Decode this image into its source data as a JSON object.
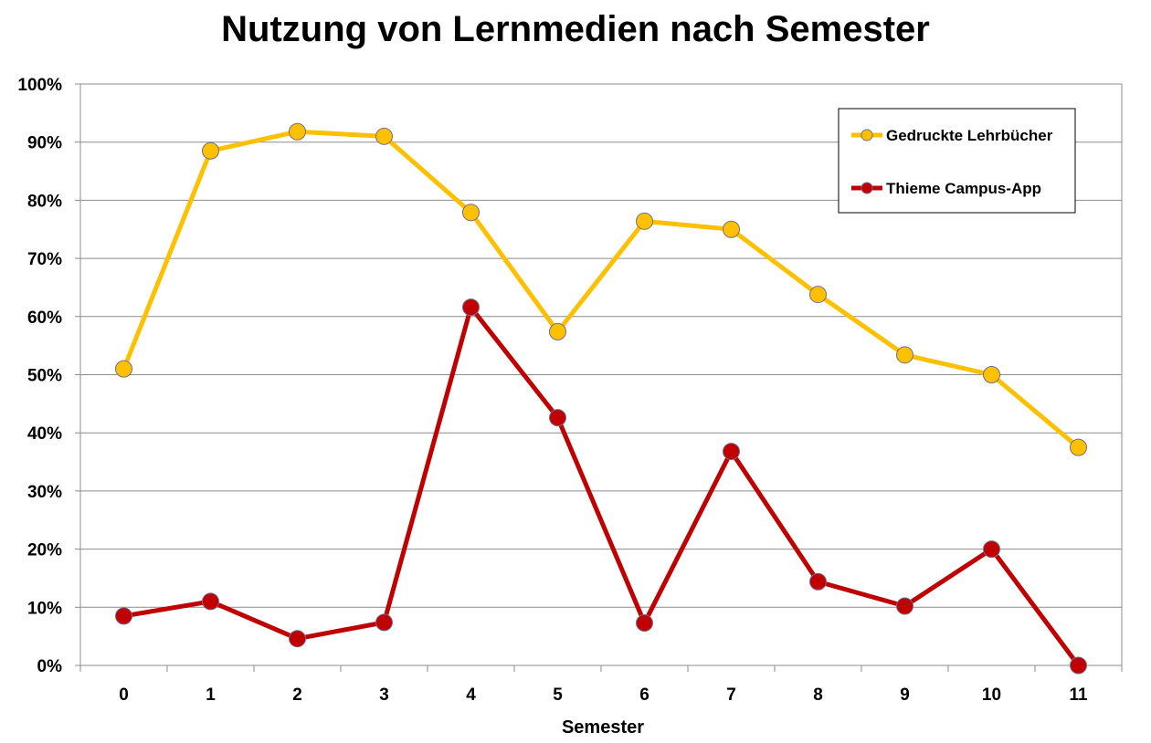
{
  "chart_data": {
    "type": "line",
    "title": "Nutzung von Lernmedien nach Semester",
    "xlabel": "Semester",
    "ylabel": "",
    "categories": [
      "0",
      "1",
      "2",
      "3",
      "4",
      "5",
      "6",
      "7",
      "8",
      "9",
      "10",
      "11"
    ],
    "y_ticks": [
      "0%",
      "10%",
      "20%",
      "30%",
      "40%",
      "50%",
      "60%",
      "70%",
      "80%",
      "90%",
      "100%"
    ],
    "ylim": [
      0,
      100
    ],
    "grid": true,
    "legend_position": "top-right",
    "series": [
      {
        "name": "Gedruckte Lehrbücher",
        "color": "#ffc000",
        "values": [
          51.0,
          88.5,
          91.8,
          91.0,
          77.9,
          57.4,
          76.4,
          75.0,
          63.8,
          53.4,
          50.0,
          37.5
        ]
      },
      {
        "name": "Thieme Campus-App",
        "color": "#c00000",
        "values": [
          8.5,
          11.0,
          4.6,
          7.4,
          61.6,
          42.6,
          7.3,
          36.8,
          14.4,
          10.2,
          20.0,
          0.0
        ]
      }
    ]
  }
}
